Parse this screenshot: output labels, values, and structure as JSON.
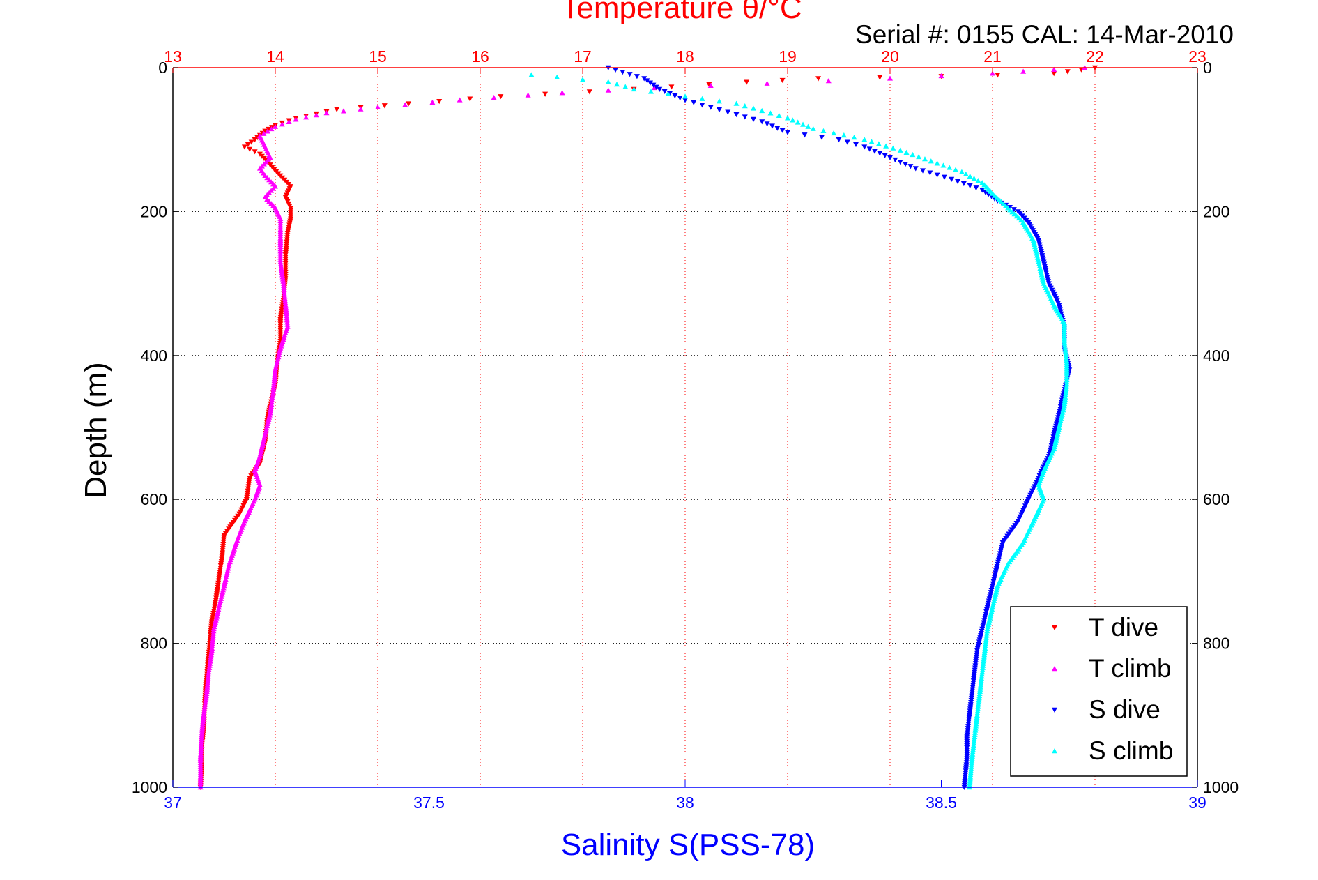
{
  "chart_data": {
    "type": "scatter",
    "title": "Temperature θ/°C",
    "subtitle": "Serial #: 0155  CAL: 14-Mar-2010",
    "xlabel_bottom": "Salinity S(PSS-78)",
    "ylabel": "Depth (m)",
    "x_top_axis": {
      "label": "Temperature θ/°C",
      "lim": [
        13,
        23
      ],
      "ticks": [
        13,
        14,
        15,
        16,
        17,
        18,
        19,
        20,
        21,
        22,
        23
      ],
      "color": "#ff0000",
      "grid": true
    },
    "x_bottom_axis": {
      "label": "Salinity S(PSS-78)",
      "lim": [
        37,
        39
      ],
      "ticks": [
        37,
        37.5,
        38,
        38.5,
        39
      ],
      "color": "#0000ff"
    },
    "y_axis": {
      "label": "Depth (m)",
      "lim": [
        0,
        1000
      ],
      "ticks": [
        0,
        200,
        400,
        600,
        800,
        1000
      ],
      "reversed": true,
      "grid": true
    },
    "legend_position": "bottom-right",
    "series": [
      {
        "name": "T dive",
        "axis": "temperature",
        "color": "#ff0000",
        "marker": "triangle-down",
        "points": [
          [
            22.0,
            0
          ],
          [
            21.6,
            8
          ],
          [
            20.5,
            12
          ],
          [
            19.3,
            15
          ],
          [
            18.6,
            20
          ],
          [
            17.5,
            30
          ],
          [
            16.2,
            40
          ],
          [
            15.3,
            50
          ],
          [
            14.6,
            58
          ],
          [
            14.2,
            70
          ],
          [
            14.0,
            80
          ],
          [
            13.9,
            88
          ],
          [
            13.8,
            100
          ],
          [
            13.7,
            110
          ],
          [
            13.85,
            120
          ],
          [
            13.95,
            135
          ],
          [
            14.05,
            150
          ],
          [
            14.15,
            165
          ],
          [
            14.1,
            180
          ],
          [
            14.15,
            195
          ],
          [
            14.15,
            210
          ],
          [
            14.12,
            230
          ],
          [
            14.1,
            260
          ],
          [
            14.1,
            290
          ],
          [
            14.08,
            320
          ],
          [
            14.05,
            350
          ],
          [
            14.05,
            380
          ],
          [
            14.02,
            410
          ],
          [
            14.0,
            440
          ],
          [
            13.95,
            470
          ],
          [
            13.92,
            490
          ],
          [
            13.9,
            520
          ],
          [
            13.85,
            550
          ],
          [
            13.75,
            570
          ],
          [
            13.72,
            600
          ],
          [
            13.65,
            620
          ],
          [
            13.5,
            650
          ],
          [
            13.48,
            680
          ],
          [
            13.45,
            710
          ],
          [
            13.42,
            740
          ],
          [
            13.38,
            770
          ],
          [
            13.36,
            800
          ],
          [
            13.34,
            830
          ],
          [
            13.32,
            860
          ],
          [
            13.31,
            890
          ],
          [
            13.3,
            920
          ],
          [
            13.28,
            950
          ],
          [
            13.28,
            980
          ],
          [
            13.27,
            1000
          ]
        ]
      },
      {
        "name": "T climb",
        "axis": "temperature",
        "color": "#ff00ff",
        "marker": "triangle-up",
        "points": [
          [
            21.9,
            0
          ],
          [
            21.0,
            8
          ],
          [
            20.0,
            15
          ],
          [
            18.8,
            22
          ],
          [
            17.7,
            28
          ],
          [
            16.8,
            35
          ],
          [
            15.8,
            45
          ],
          [
            15.0,
            55
          ],
          [
            14.5,
            63
          ],
          [
            14.2,
            72
          ],
          [
            14.0,
            82
          ],
          [
            13.85,
            95
          ],
          [
            13.9,
            110
          ],
          [
            13.95,
            125
          ],
          [
            13.85,
            140
          ],
          [
            13.9,
            150
          ],
          [
            14.0,
            165
          ],
          [
            13.9,
            180
          ],
          [
            14.0,
            195
          ],
          [
            14.05,
            210
          ],
          [
            14.05,
            240
          ],
          [
            14.05,
            270
          ],
          [
            14.08,
            300
          ],
          [
            14.1,
            330
          ],
          [
            14.12,
            360
          ],
          [
            14.05,
            390
          ],
          [
            14.0,
            420
          ],
          [
            13.98,
            450
          ],
          [
            13.95,
            480
          ],
          [
            13.9,
            510
          ],
          [
            13.85,
            540
          ],
          [
            13.8,
            560
          ],
          [
            13.85,
            580
          ],
          [
            13.8,
            600
          ],
          [
            13.7,
            630
          ],
          [
            13.62,
            660
          ],
          [
            13.55,
            690
          ],
          [
            13.5,
            720
          ],
          [
            13.45,
            750
          ],
          [
            13.4,
            780
          ],
          [
            13.38,
            810
          ],
          [
            13.35,
            840
          ],
          [
            13.33,
            870
          ],
          [
            13.3,
            900
          ],
          [
            13.28,
            930
          ],
          [
            13.27,
            960
          ],
          [
            13.27,
            1000
          ]
        ]
      },
      {
        "name": "S dive",
        "axis": "salinity",
        "color": "#0000ff",
        "marker": "triangle-down",
        "points": [
          [
            37.85,
            0
          ],
          [
            37.92,
            15
          ],
          [
            37.95,
            30
          ],
          [
            38.0,
            45
          ],
          [
            38.05,
            55
          ],
          [
            38.1,
            65
          ],
          [
            38.15,
            75
          ],
          [
            38.2,
            90
          ],
          [
            38.3,
            100
          ],
          [
            38.35,
            110
          ],
          [
            38.4,
            125
          ],
          [
            38.45,
            140
          ],
          [
            38.52,
            155
          ],
          [
            38.58,
            170
          ],
          [
            38.61,
            185
          ],
          [
            38.65,
            200
          ],
          [
            38.67,
            215
          ],
          [
            38.69,
            240
          ],
          [
            38.7,
            270
          ],
          [
            38.71,
            300
          ],
          [
            38.73,
            330
          ],
          [
            38.74,
            360
          ],
          [
            38.74,
            390
          ],
          [
            38.75,
            420
          ],
          [
            38.74,
            450
          ],
          [
            38.73,
            480
          ],
          [
            38.72,
            510
          ],
          [
            38.71,
            540
          ],
          [
            38.69,
            570
          ],
          [
            38.67,
            600
          ],
          [
            38.65,
            630
          ],
          [
            38.62,
            660
          ],
          [
            38.61,
            690
          ],
          [
            38.6,
            720
          ],
          [
            38.59,
            750
          ],
          [
            38.58,
            780
          ],
          [
            38.57,
            810
          ],
          [
            38.565,
            840
          ],
          [
            38.56,
            870
          ],
          [
            38.555,
            900
          ],
          [
            38.55,
            930
          ],
          [
            38.55,
            960
          ],
          [
            38.545,
            1000
          ]
        ]
      },
      {
        "name": "S climb",
        "axis": "salinity",
        "color": "#00ffff",
        "marker": "triangle-up",
        "points": [
          [
            37.7,
            10
          ],
          [
            37.85,
            20
          ],
          [
            37.9,
            30
          ],
          [
            38.0,
            40
          ],
          [
            38.1,
            50
          ],
          [
            38.15,
            60
          ],
          [
            38.2,
            70
          ],
          [
            38.25,
            85
          ],
          [
            38.35,
            100
          ],
          [
            38.42,
            115
          ],
          [
            38.48,
            130
          ],
          [
            38.54,
            145
          ],
          [
            38.58,
            160
          ],
          [
            38.6,
            175
          ],
          [
            38.63,
            195
          ],
          [
            38.66,
            215
          ],
          [
            38.68,
            240
          ],
          [
            38.69,
            270
          ],
          [
            38.7,
            300
          ],
          [
            38.72,
            330
          ],
          [
            38.74,
            355
          ],
          [
            38.74,
            380
          ],
          [
            38.745,
            410
          ],
          [
            38.745,
            440
          ],
          [
            38.74,
            470
          ],
          [
            38.73,
            500
          ],
          [
            38.72,
            530
          ],
          [
            38.7,
            560
          ],
          [
            38.69,
            580
          ],
          [
            38.7,
            600
          ],
          [
            38.68,
            630
          ],
          [
            38.66,
            660
          ],
          [
            38.63,
            690
          ],
          [
            38.61,
            720
          ],
          [
            38.6,
            750
          ],
          [
            38.59,
            780
          ],
          [
            38.585,
            810
          ],
          [
            38.58,
            840
          ],
          [
            38.575,
            870
          ],
          [
            38.57,
            900
          ],
          [
            38.565,
            930
          ],
          [
            38.56,
            960
          ],
          [
            38.555,
            1000
          ]
        ]
      }
    ]
  }
}
